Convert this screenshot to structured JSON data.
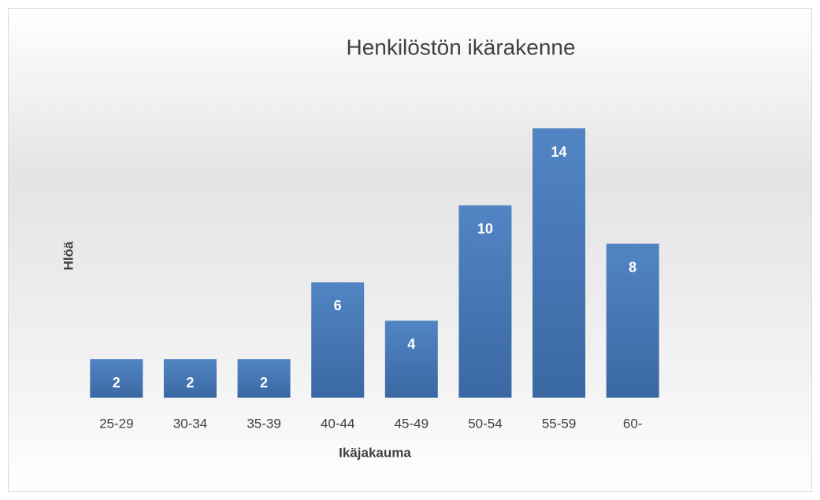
{
  "chart_data": {
    "type": "bar",
    "title": "Henkilöstön ikärakenne",
    "y_label": "Hlöä",
    "x_label": "Ikäjakauma",
    "categories": [
      "25-29",
      "30-34",
      "35-39",
      "40-44",
      "45-49",
      "50-54",
      "55-59",
      "60-"
    ],
    "values": [
      2,
      2,
      2,
      6,
      4,
      10,
      14,
      8
    ],
    "color": "#4a7dbb"
  }
}
